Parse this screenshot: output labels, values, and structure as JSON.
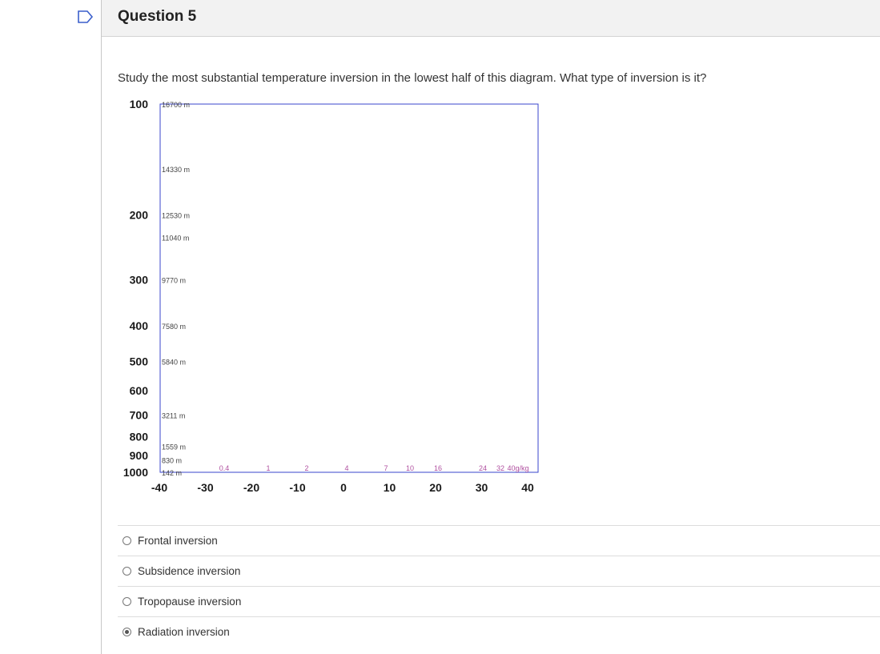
{
  "question": {
    "title": "Question 5",
    "text": "Study the most substantial temperature inversion in the lowest half of this diagram. What type of inversion is it?"
  },
  "chart_data": {
    "type": "line",
    "title": "",
    "xlabel": "",
    "ylabel": "",
    "pressure_labels": [
      "100",
      "200",
      "300",
      "400",
      "500",
      "600",
      "700",
      "800",
      "900",
      "1000"
    ],
    "temperature_labels": [
      "-40",
      "-30",
      "-20",
      "-10",
      "0",
      "10",
      "20",
      "30",
      "40"
    ],
    "height_labels": [
      "16700 m",
      "14330 m",
      "12530 m",
      "11040 m",
      "9770 m",
      "7580 m",
      "5840 m",
      "3211 m",
      "1559 m",
      "830 m",
      "142 m"
    ],
    "mixing_ratio_labels": [
      "0.4",
      "1",
      "2",
      "4",
      "7",
      "10",
      "16",
      "24",
      "32",
      "40g/kg"
    ],
    "ylim": [
      1000,
      100
    ],
    "xlim": [
      -40,
      45
    ],
    "colors": {
      "isobar": "#3a44cc",
      "isotherm": "#3a44cc",
      "dry_adiabat": "#33a033",
      "moist_adiabat": "#5a7fcc",
      "mixing_ratio": "#b050a0",
      "sounding": "#000000",
      "parcel": "#888888"
    }
  },
  "options": [
    {
      "label": "Frontal inversion",
      "selected": false
    },
    {
      "label": "Subsidence inversion",
      "selected": false
    },
    {
      "label": "Tropopause inversion",
      "selected": false
    },
    {
      "label": "Radiation inversion",
      "selected": true
    }
  ]
}
